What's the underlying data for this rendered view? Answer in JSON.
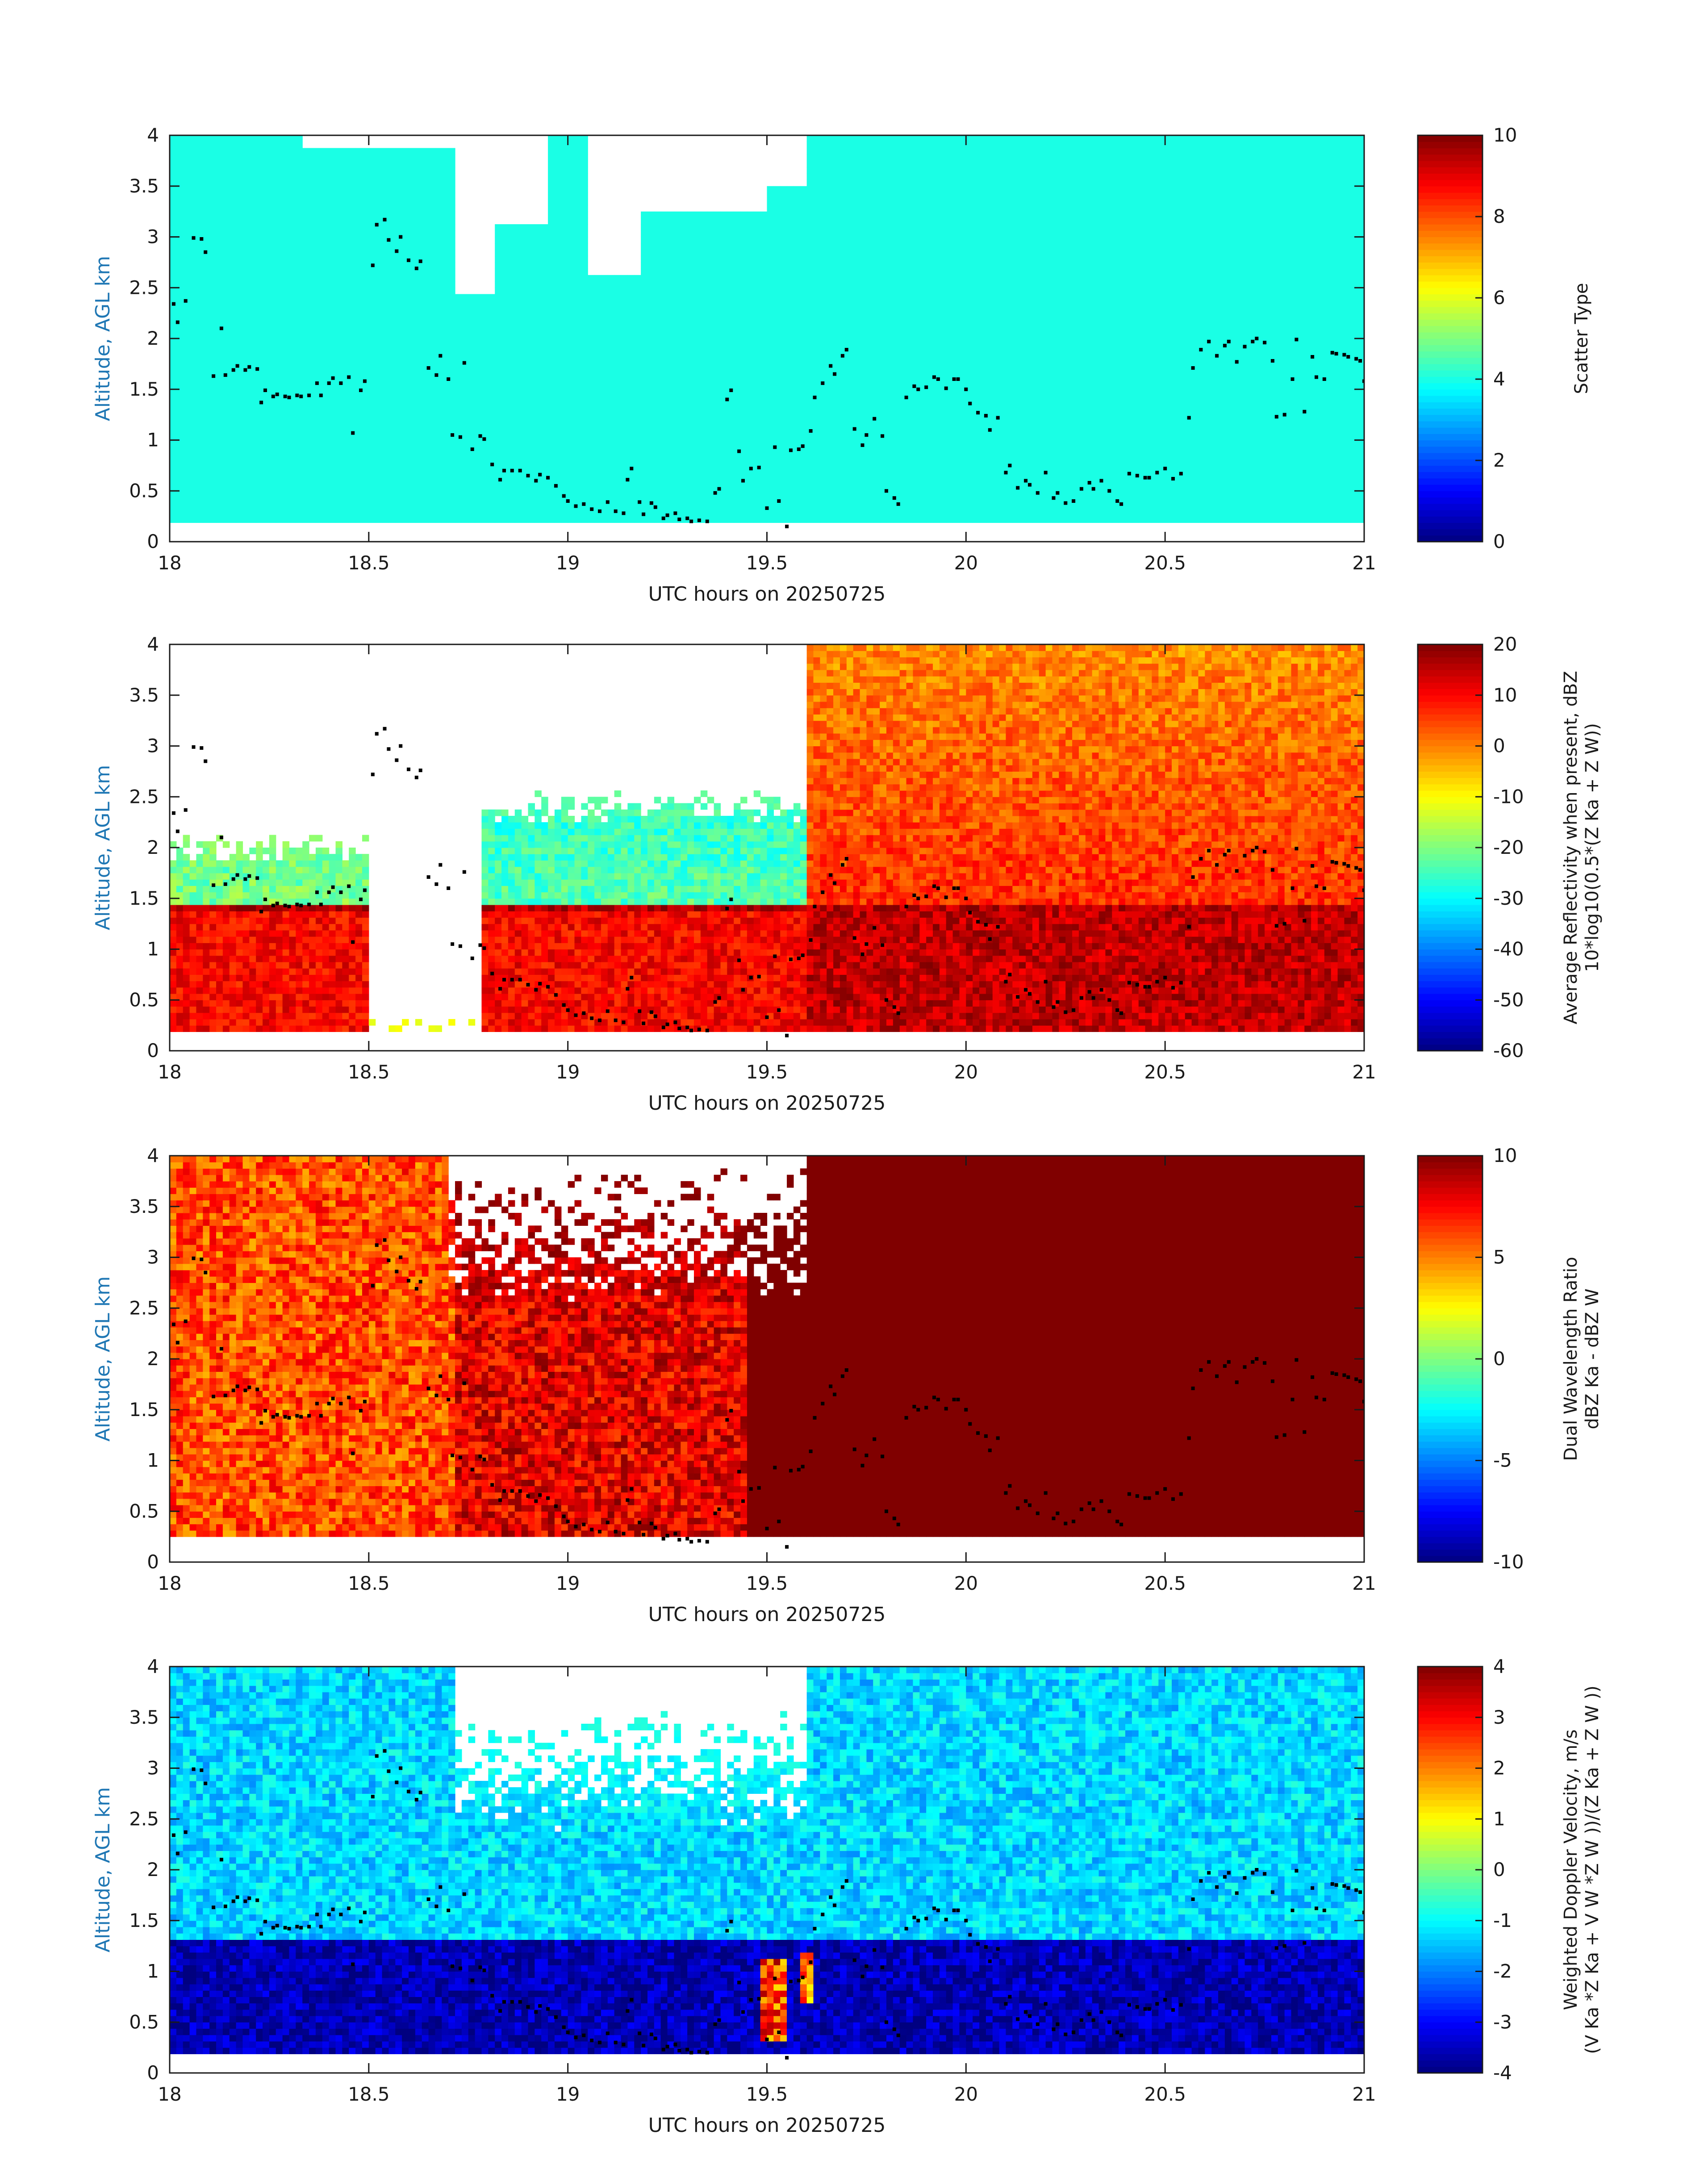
{
  "figure": {
    "background": "#ffffff",
    "axis_color": "#1a1a1a",
    "ylabel_color": "#1f77b4",
    "overlay_point_color": "#000000"
  },
  "chart_data": [
    {
      "type": "heatmap",
      "panel": "scatter-type",
      "xlabel": "UTC hours on 20250725",
      "ylabel": "Altitude, AGL km",
      "xlim": [
        18,
        21
      ],
      "ylim": [
        0,
        4
      ],
      "xticks": [
        18,
        18.5,
        19,
        19.5,
        20,
        20.5,
        21
      ],
      "yticks": [
        0,
        0.5,
        1,
        1.5,
        2,
        2.5,
        3,
        3.5,
        4
      ],
      "colorbar": {
        "label_lines": [
          "Scatter Type"
        ],
        "range": [
          0,
          10
        ],
        "ticks": [
          0,
          2,
          4,
          6,
          8,
          10
        ],
        "colormap": "jet"
      },
      "field": {
        "value": 4,
        "base_altitude_km": 0.18,
        "white_gap_regions": [
          {
            "x": [
              18.33,
              18.72
            ],
            "top_km": [
              3.85,
              4.0
            ]
          },
          {
            "x": [
              18.72,
              18.82
            ],
            "top_km": [
              2.45,
              4.0
            ]
          },
          {
            "x": [
              18.82,
              18.95
            ],
            "top_km": [
              3.15,
              4.0
            ]
          },
          {
            "x": [
              19.05,
              19.18
            ],
            "top_km": [
              2.65,
              4.0
            ]
          },
          {
            "x": [
              19.18,
              19.5
            ],
            "top_km": [
              3.25,
              4.0
            ]
          },
          {
            "x": [
              19.5,
              19.6
            ],
            "top_km": [
              3.5,
              4.0
            ]
          }
        ]
      },
      "overlay_points": "cloud_base_points"
    },
    {
      "type": "heatmap",
      "panel": "average-reflectivity",
      "xlabel": "UTC hours on 20250725",
      "ylabel": "Altitude, AGL km",
      "xlim": [
        18,
        21
      ],
      "ylim": [
        0,
        4
      ],
      "xticks": [
        18,
        18.5,
        19,
        19.5,
        20,
        20.5,
        21
      ],
      "yticks": [
        0,
        0.5,
        1,
        1.5,
        2,
        2.5,
        3,
        3.5,
        4
      ],
      "colorbar": {
        "label_lines": [
          "Average Reflectivity when present, dBZ",
          "10*log10(0.5*(Z Ka + Z W))"
        ],
        "range": [
          -60,
          20
        ],
        "ticks": [
          -60,
          -50,
          -40,
          -30,
          -20,
          -10,
          0,
          10,
          20
        ],
        "colormap": "jet"
      },
      "field": {
        "base_altitude_km": 0.18,
        "melting_layer_km": 1.4,
        "regions": [
          {
            "x": [
              18.0,
              18.5
            ],
            "above_km": 2.0,
            "dbz_upper": -22,
            "dbz_lower": 10
          },
          {
            "x": [
              18.5,
              18.78
            ],
            "above_km": 0.2,
            "dbz_upper": -20,
            "dbz_lower": -15
          },
          {
            "x": [
              18.78,
              19.6
            ],
            "above_km": 2.4,
            "dbz_upper": -25,
            "dbz_lower": 10
          },
          {
            "x": [
              19.6,
              21.0
            ],
            "above_km": 4.0,
            "dbz_upper": 5,
            "dbz_lower": 15
          }
        ]
      },
      "overlay_points": "cloud_base_points"
    },
    {
      "type": "heatmap",
      "panel": "dual-wavelength-ratio",
      "xlabel": "UTC hours on 20250725",
      "ylabel": "Altitude, AGL km",
      "xlim": [
        18,
        21
      ],
      "ylim": [
        0,
        4
      ],
      "xticks": [
        18,
        18.5,
        19,
        19.5,
        20,
        20.5,
        21
      ],
      "yticks": [
        0,
        0.5,
        1,
        1.5,
        2,
        2.5,
        3,
        3.5,
        4
      ],
      "colorbar": {
        "label_lines": [
          "Dual Wavelength Ratio",
          "dBZ Ka - dBZ W"
        ],
        "range": [
          -10,
          10
        ],
        "ticks": [
          -10,
          -5,
          0,
          5,
          10
        ],
        "colormap": "jet"
      },
      "field": {
        "base_altitude_km": 0.28,
        "regions": [
          {
            "x": [
              18.0,
              18.72
            ],
            "dwr": 6
          },
          {
            "x": [
              18.72,
              19.45
            ],
            "dwr": 8
          },
          {
            "x": [
              19.45,
              21.0
            ],
            "dwr": 10
          }
        ]
      },
      "overlay_points": "cloud_base_points"
    },
    {
      "type": "heatmap",
      "panel": "weighted-doppler-velocity",
      "xlabel": "UTC hours on 20250725",
      "ylabel": "Altitude, AGL km",
      "xlim": [
        18,
        21
      ],
      "ylim": [
        0,
        4
      ],
      "xticks": [
        18,
        18.5,
        19,
        19.5,
        20,
        20.5,
        21
      ],
      "yticks": [
        0,
        0.5,
        1,
        1.5,
        2,
        2.5,
        3,
        3.5,
        4
      ],
      "colorbar": {
        "label_lines": [
          "Weighted Doppler Velocity, m/s",
          "(V Ka *Z Ka + V W *Z W ))/(Z Ka + Z W ))"
        ],
        "range": [
          -4,
          4
        ],
        "ticks": [
          -4,
          -3,
          -2,
          -1,
          0,
          1,
          2,
          3,
          4
        ],
        "colormap": "jet"
      },
      "field": {
        "base_altitude_km": 0.18,
        "melting_layer_km": 1.32,
        "velocity_above_melting": -1.3,
        "velocity_below_melting": -3.6,
        "updraft_columns": [
          {
            "x": [
              19.49,
              19.55
            ],
            "km": [
              0.3,
              1.15
            ],
            "ms": 2.5
          },
          {
            "x": [
              19.58,
              19.61
            ],
            "km": [
              0.7,
              1.2
            ],
            "ms": 2.0
          }
        ]
      },
      "overlay_points": "cloud_base_points"
    }
  ],
  "cloud_base_points": [
    [
      18.01,
      2.34
    ],
    [
      18.02,
      2.16
    ],
    [
      18.04,
      2.37
    ],
    [
      18.06,
      2.99
    ],
    [
      18.08,
      2.98
    ],
    [
      18.09,
      2.85
    ],
    [
      18.11,
      1.63
    ],
    [
      18.13,
      2.1
    ],
    [
      18.14,
      1.64
    ],
    [
      18.16,
      1.69
    ],
    [
      18.17,
      1.73
    ],
    [
      18.19,
      1.69
    ],
    [
      18.2,
      1.72
    ],
    [
      18.22,
      1.7
    ],
    [
      18.23,
      1.37
    ],
    [
      18.24,
      1.49
    ],
    [
      18.26,
      1.43
    ],
    [
      18.27,
      1.45
    ],
    [
      18.29,
      1.43
    ],
    [
      18.3,
      1.42
    ],
    [
      18.32,
      1.44
    ],
    [
      18.33,
      1.43
    ],
    [
      18.35,
      1.44
    ],
    [
      18.37,
      1.56
    ],
    [
      18.38,
      1.44
    ],
    [
      18.4,
      1.56
    ],
    [
      18.41,
      1.61
    ],
    [
      18.43,
      1.56
    ],
    [
      18.45,
      1.62
    ],
    [
      18.46,
      1.07
    ],
    [
      18.48,
      1.49
    ],
    [
      18.49,
      1.58
    ],
    [
      18.51,
      2.72
    ],
    [
      18.52,
      3.12
    ],
    [
      18.54,
      3.17
    ],
    [
      18.55,
      2.97
    ],
    [
      18.57,
      2.86
    ],
    [
      18.58,
      3.0
    ],
    [
      18.6,
      2.77
    ],
    [
      18.62,
      2.69
    ],
    [
      18.63,
      2.76
    ],
    [
      18.65,
      1.71
    ],
    [
      18.67,
      1.64
    ],
    [
      18.68,
      1.83
    ],
    [
      18.7,
      1.6
    ],
    [
      18.71,
      1.05
    ],
    [
      18.73,
      1.03
    ],
    [
      18.74,
      1.76
    ],
    [
      18.76,
      0.91
    ],
    [
      18.78,
      1.04
    ],
    [
      18.79,
      1.01
    ],
    [
      18.81,
      0.76
    ],
    [
      18.83,
      0.61
    ],
    [
      18.84,
      0.7
    ],
    [
      18.86,
      0.7
    ],
    [
      18.88,
      0.7
    ],
    [
      18.9,
      0.65
    ],
    [
      18.92,
      0.6
    ],
    [
      18.93,
      0.66
    ],
    [
      18.95,
      0.63
    ],
    [
      18.97,
      0.55
    ],
    [
      18.99,
      0.45
    ],
    [
      19.0,
      0.4
    ],
    [
      19.02,
      0.35
    ],
    [
      19.04,
      0.37
    ],
    [
      19.06,
      0.32
    ],
    [
      19.08,
      0.3
    ],
    [
      19.1,
      0.39
    ],
    [
      19.12,
      0.3
    ],
    [
      19.14,
      0.28
    ],
    [
      19.15,
      0.61
    ],
    [
      19.16,
      0.72
    ],
    [
      19.18,
      0.39
    ],
    [
      19.19,
      0.27
    ],
    [
      19.21,
      0.38
    ],
    [
      19.22,
      0.34
    ],
    [
      19.24,
      0.23
    ],
    [
      19.25,
      0.26
    ],
    [
      19.27,
      0.28
    ],
    [
      19.28,
      0.22
    ],
    [
      19.3,
      0.23
    ],
    [
      19.31,
      0.2
    ],
    [
      19.33,
      0.21
    ],
    [
      19.35,
      0.2
    ],
    [
      19.37,
      0.48
    ],
    [
      19.38,
      0.52
    ],
    [
      19.4,
      1.4
    ],
    [
      19.41,
      1.49
    ],
    [
      19.43,
      0.89
    ],
    [
      19.44,
      0.6
    ],
    [
      19.46,
      0.72
    ],
    [
      19.48,
      0.73
    ],
    [
      19.5,
      0.33
    ],
    [
      19.52,
      0.93
    ],
    [
      19.53,
      0.4
    ],
    [
      19.55,
      0.15
    ],
    [
      19.56,
      0.9
    ],
    [
      19.58,
      0.91
    ],
    [
      19.59,
      0.94
    ],
    [
      19.61,
      1.09
    ],
    [
      19.62,
      1.42
    ],
    [
      19.64,
      1.56
    ],
    [
      19.66,
      1.73
    ],
    [
      19.67,
      1.65
    ],
    [
      19.69,
      1.83
    ],
    [
      19.7,
      1.89
    ],
    [
      19.72,
      1.11
    ],
    [
      19.74,
      0.95
    ],
    [
      19.75,
      1.05
    ],
    [
      19.77,
      1.21
    ],
    [
      19.79,
      1.04
    ],
    [
      19.8,
      0.5
    ],
    [
      19.82,
      0.43
    ],
    [
      19.83,
      0.37
    ],
    [
      19.85,
      1.42
    ],
    [
      19.87,
      1.53
    ],
    [
      19.88,
      1.5
    ],
    [
      19.9,
      1.52
    ],
    [
      19.92,
      1.62
    ],
    [
      19.93,
      1.6
    ],
    [
      19.95,
      1.51
    ],
    [
      19.97,
      1.6
    ],
    [
      19.98,
      1.6
    ],
    [
      20.0,
      1.5
    ],
    [
      20.01,
      1.36
    ],
    [
      20.03,
      1.27
    ],
    [
      20.05,
      1.24
    ],
    [
      20.06,
      1.1
    ],
    [
      20.08,
      1.22
    ],
    [
      20.1,
      0.68
    ],
    [
      20.11,
      0.75
    ],
    [
      20.13,
      0.53
    ],
    [
      20.15,
      0.6
    ],
    [
      20.16,
      0.56
    ],
    [
      20.18,
      0.48
    ],
    [
      20.2,
      0.68
    ],
    [
      20.22,
      0.43
    ],
    [
      20.23,
      0.48
    ],
    [
      20.25,
      0.38
    ],
    [
      20.27,
      0.4
    ],
    [
      20.29,
      0.52
    ],
    [
      20.31,
      0.58
    ],
    [
      20.32,
      0.52
    ],
    [
      20.34,
      0.6
    ],
    [
      20.36,
      0.5
    ],
    [
      20.38,
      0.4
    ],
    [
      20.39,
      0.37
    ],
    [
      20.41,
      0.67
    ],
    [
      20.43,
      0.65
    ],
    [
      20.45,
      0.63
    ],
    [
      20.46,
      0.63
    ],
    [
      20.48,
      0.68
    ],
    [
      20.5,
      0.72
    ],
    [
      20.52,
      0.62
    ],
    [
      20.54,
      0.67
    ],
    [
      20.56,
      1.22
    ],
    [
      20.57,
      1.71
    ],
    [
      20.59,
      1.89
    ],
    [
      20.61,
      1.97
    ],
    [
      20.63,
      1.83
    ],
    [
      20.65,
      1.93
    ],
    [
      20.66,
      1.97
    ],
    [
      20.68,
      1.77
    ],
    [
      20.7,
      1.92
    ],
    [
      20.72,
      1.97
    ],
    [
      20.73,
      2.0
    ],
    [
      20.75,
      1.96
    ],
    [
      20.77,
      1.78
    ],
    [
      20.78,
      1.23
    ],
    [
      20.8,
      1.25
    ],
    [
      20.82,
      1.6
    ],
    [
      20.83,
      1.99
    ],
    [
      20.85,
      1.28
    ],
    [
      20.87,
      1.82
    ],
    [
      20.88,
      1.62
    ],
    [
      20.9,
      1.6
    ],
    [
      20.92,
      1.86
    ],
    [
      20.93,
      1.85
    ],
    [
      20.95,
      1.84
    ],
    [
      20.96,
      1.82
    ],
    [
      20.98,
      1.8
    ],
    [
      20.99,
      1.78
    ],
    [
      21.0,
      1.58
    ]
  ]
}
